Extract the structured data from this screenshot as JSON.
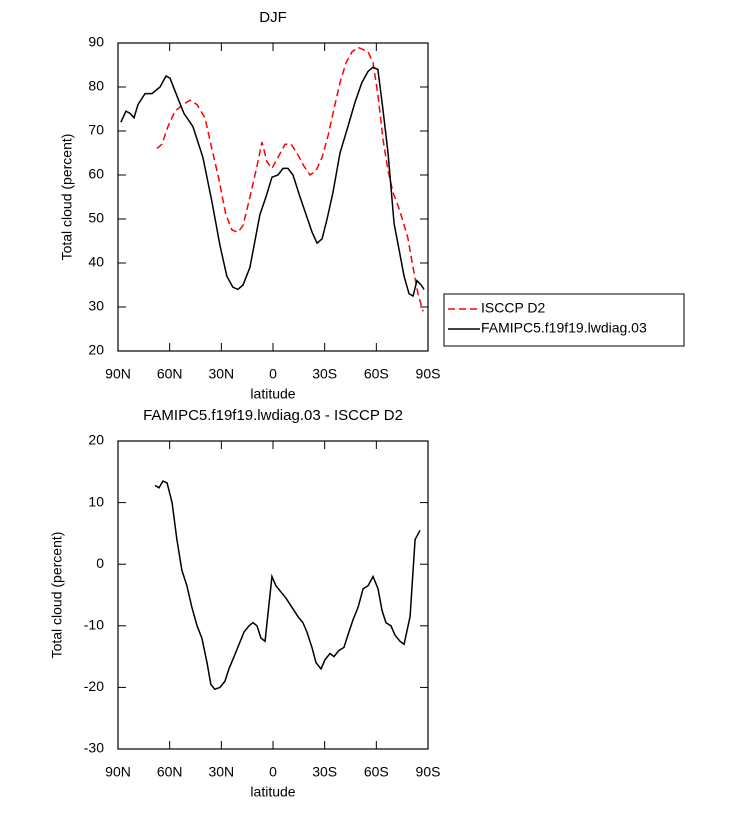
{
  "chart_data": [
    {
      "type": "line",
      "title": "DJF",
      "x_label": "latitude",
      "y_label": "Total cloud (percent)",
      "xlim": [
        90,
        -90
      ],
      "xticks": [
        {
          "value": 90,
          "label": "90N"
        },
        {
          "value": 60,
          "label": "60N"
        },
        {
          "value": 30,
          "label": "30N"
        },
        0,
        {
          "value": -30,
          "label": "30S"
        },
        {
          "value": -60,
          "label": "60S"
        },
        {
          "value": -90,
          "label": "90S"
        }
      ],
      "ylim": [
        20,
        90
      ],
      "yticks": [
        20,
        30,
        40,
        50,
        60,
        70,
        80,
        90
      ],
      "legend": "right",
      "series": [
        {
          "name": "ISCCP D2",
          "color": "#ff0000",
          "dash": true,
          "x": [
            67.4,
            64.5,
            61.0,
            56.9,
            52.3,
            48.2,
            44.1,
            39.5,
            35.5,
            31.4,
            27.4,
            23.8,
            20.4,
            17.4,
            13.4,
            9.3,
            6.4,
            3.5,
            0.6,
            -2.9,
            -7.0,
            -10.5,
            -13.9,
            -18.0,
            -21.5,
            -25.0,
            -28.5,
            -32.0,
            -35.4,
            -38.9,
            -42.4,
            -45.9,
            -49.4,
            -52.3,
            -55.2,
            -58.1,
            -61.0,
            -63.9,
            -66.8,
            -69.7,
            -72.6,
            -75.5,
            -78.4,
            -81.3,
            -84.2,
            -87.1
          ],
          "values": [
            66,
            67,
            71,
            74.5,
            76,
            77,
            76,
            73,
            66,
            59,
            51,
            47.5,
            47,
            48.5,
            55,
            62,
            67.5,
            63,
            61.5,
            64,
            67,
            67,
            65,
            62,
            60,
            61,
            64,
            69,
            75,
            81,
            85.5,
            88,
            89,
            88.5,
            88,
            85.5,
            78,
            68,
            61,
            56,
            53,
            49.5,
            45.5,
            39,
            33,
            29
          ]
        },
        {
          "name": "FAMIPC5.f19f19.lwdiag.03",
          "color": "#000000",
          "dash": false,
          "x": [
            88.3,
            85.4,
            83.0,
            80.7,
            78.4,
            74.3,
            70.3,
            65.6,
            62.1,
            59.8,
            55.8,
            51.7,
            46.5,
            40.7,
            35.5,
            30.8,
            26.8,
            23.3,
            20.4,
            17.4,
            13.4,
            10.5,
            7.6,
            4.1,
            0.6,
            -2.9,
            -5.8,
            -8.7,
            -11.6,
            -15.7,
            -19.2,
            -22.7,
            -25.6,
            -28.5,
            -31.4,
            -34.8,
            -38.9,
            -43.5,
            -47.6,
            -51.6,
            -55.1,
            -58.0,
            -60.9,
            -63.8,
            -66.8,
            -70.3,
            -73.7,
            -76.1,
            -79.0,
            -81.3,
            -83.6,
            -86.0,
            -87.7
          ],
          "values": [
            72,
            74.5,
            74,
            73,
            76,
            78.5,
            78.5,
            80,
            82.5,
            82,
            78,
            74,
            71,
            64,
            54,
            44,
            37,
            34.5,
            34,
            35,
            39,
            45,
            51,
            55,
            59.5,
            60,
            61.5,
            61.5,
            60,
            55,
            51,
            47,
            44.5,
            45.5,
            50,
            56,
            65,
            71,
            76.5,
            81,
            83.5,
            84.5,
            84,
            75,
            65,
            49,
            42,
            37,
            33,
            32.5,
            36,
            35,
            34
          ]
        }
      ]
    },
    {
      "type": "line",
      "title": "FAMIPC5.f19f19.lwdiag.03 - ISCCP D2",
      "x_label": "latitude",
      "y_label": "Total cloud (percent)",
      "xlim": [
        90,
        -90
      ],
      "xticks": [
        {
          "value": 90,
          "label": "90N"
        },
        {
          "value": 60,
          "label": "60N"
        },
        {
          "value": 30,
          "label": "30N"
        },
        0,
        {
          "value": -30,
          "label": "30S"
        },
        {
          "value": -60,
          "label": "60S"
        },
        {
          "value": -90,
          "label": "90S"
        }
      ],
      "ylim": [
        -30,
        20
      ],
      "yticks": [
        -30,
        -20,
        -10,
        0,
        10,
        20
      ],
      "series": [
        {
          "color": "#000000",
          "dash": false,
          "x": [
            68.5,
            66.2,
            63.9,
            61.5,
            58.6,
            55.8,
            52.9,
            50.0,
            47.1,
            44.1,
            41.3,
            38.3,
            36.1,
            33.8,
            30.8,
            27.9,
            25.6,
            22.6,
            19.7,
            16.8,
            13.9,
            11.6,
            9.3,
            7.0,
            4.6,
            2.9,
            0.6,
            -1.7,
            -4.6,
            -7.5,
            -11.0,
            -14.5,
            -17.4,
            -19.7,
            -22.6,
            -25.0,
            -27.9,
            -30.2,
            -33.1,
            -35.4,
            -38.3,
            -41.2,
            -43.5,
            -46.5,
            -49.4,
            -52.3,
            -55.2,
            -58.1,
            -61.0,
            -63.3,
            -65.6,
            -68.5,
            -70.8,
            -73.7,
            -76.1,
            -79.6,
            -82.5,
            -85.4
          ],
          "values": [
            12.8,
            12.4,
            13.5,
            13.2,
            10,
            4,
            -1,
            -3.5,
            -7,
            -10,
            -12,
            -16,
            -19.5,
            -20.3,
            -20,
            -19,
            -17,
            -15,
            -13,
            -11,
            -10,
            -9.5,
            -10,
            -12,
            -12.5,
            -8,
            -2,
            -3.5,
            -4.5,
            -5.5,
            -7,
            -8.5,
            -9.5,
            -11,
            -13.5,
            -16,
            -17,
            -15.5,
            -14.5,
            -15,
            -14,
            -13.5,
            -11.5,
            -9,
            -7,
            -4,
            -3.5,
            -2,
            -4,
            -7.5,
            -9.5,
            -10,
            -11.5,
            -12.5,
            -13,
            -8.5,
            4,
            5.5
          ]
        }
      ]
    }
  ]
}
